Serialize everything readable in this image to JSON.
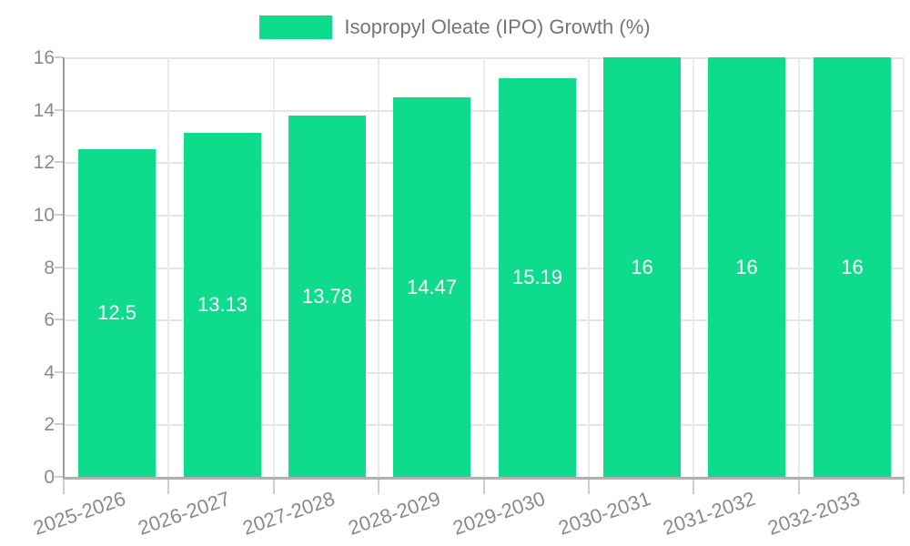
{
  "legend": {
    "label": "Isopropyl Oleate (IPO) Growth (%)"
  },
  "chart_data": {
    "type": "bar",
    "title": "",
    "xlabel": "",
    "ylabel": "",
    "categories": [
      "2025-2026",
      "2026-2027",
      "2027-2028",
      "2028-2029",
      "2029-2030",
      "2030-2031",
      "2031-2032",
      "2032-2033"
    ],
    "series": [
      {
        "name": "Isopropyl Oleate (IPO) Growth (%)",
        "values": [
          12.5,
          13.13,
          13.78,
          14.47,
          15.19,
          16,
          16,
          16
        ],
        "value_labels": [
          "12.5",
          "13.13",
          "13.78",
          "14.47",
          "15.19",
          "16",
          "16",
          "16"
        ]
      }
    ],
    "ylim": [
      0,
      16
    ],
    "yticks": [
      0,
      2,
      4,
      6,
      8,
      10,
      12,
      14,
      16
    ],
    "grid": true,
    "legend_position": "top-center",
    "colors": {
      "bar": "#0edb8c",
      "value_label": "#ffffff",
      "axis_text": "#8a8a8a",
      "legend_text": "#757575",
      "grid_line": "#e4e4e4",
      "axis_line": "#9a9a9a"
    }
  }
}
